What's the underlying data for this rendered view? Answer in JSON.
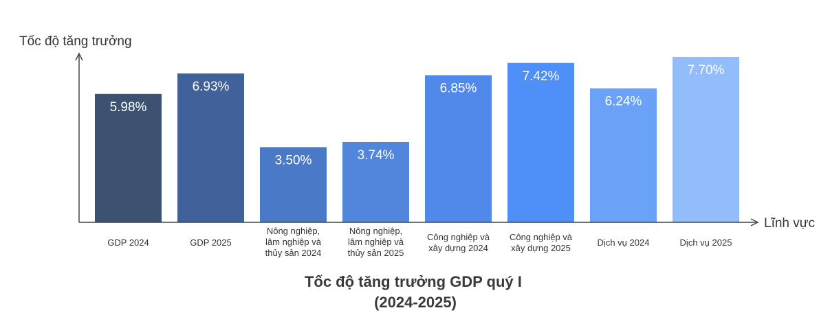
{
  "chart_data": {
    "type": "bar",
    "title": [
      "Tốc độ tăng trưởng GDP quý I",
      "(2024-2025)"
    ],
    "ylabel": "Tốc độ tăng trưởng",
    "xlabel": "Lĩnh vực",
    "ylim": [
      0,
      7.7
    ],
    "grid": false,
    "legend": "none",
    "categories": [
      [
        "GDP 2024"
      ],
      [
        "GDP 2025"
      ],
      [
        "Nông nghiệp,",
        "lâm nghiệp và",
        "thủy sản 2024"
      ],
      [
        "Nông nghiệp,",
        "lâm nghiệp và",
        "thủy sản 2025"
      ],
      [
        "Công nghiệp và",
        "xây dựng 2024"
      ],
      [
        "Công nghiệp và",
        "xây dựng 2025"
      ],
      [
        "Dịch vụ 2024"
      ],
      [
        "Dịch vụ 2025"
      ]
    ],
    "values": [
      5.98,
      6.93,
      3.5,
      3.74,
      6.85,
      7.42,
      6.24,
      7.7
    ],
    "value_labels": [
      "5.98%",
      "6.93%",
      "3.50%",
      "3.74%",
      "6.85%",
      "7.42%",
      "6.24%",
      "7.70%"
    ],
    "colors": [
      "#3d5170",
      "#41619a",
      "#4a79c8",
      "#5186dc",
      "#5189ea",
      "#4f8ff8",
      "#6aa2f8",
      "#93bcfa"
    ]
  }
}
